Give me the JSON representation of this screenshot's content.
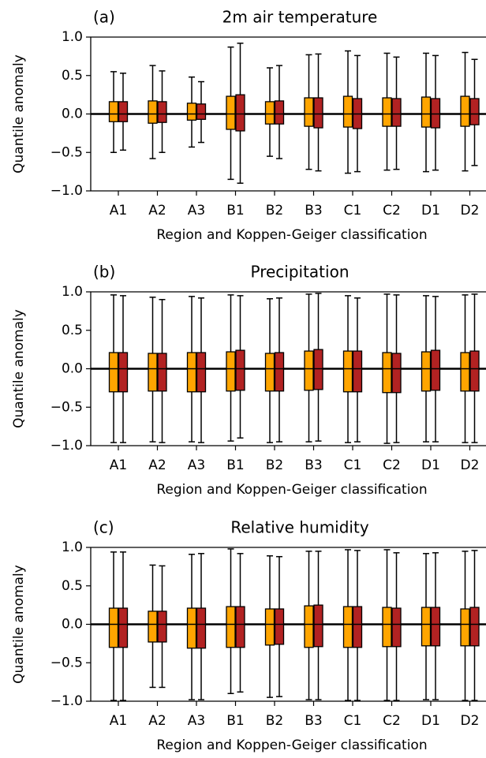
{
  "chart_data": [
    {
      "type": "box",
      "panel_label": "(a)",
      "title": "2m air temperature",
      "xlabel": "Region and Koppen-Geiger classification",
      "ylabel": "Quantile anomaly",
      "categories": [
        "A1",
        "A2",
        "A3",
        "B1",
        "B2",
        "B3",
        "C1",
        "C2",
        "D1",
        "D2"
      ],
      "series": [
        {
          "color": "#ffa500",
          "whislo": [
            -0.5,
            -0.58,
            -0.43,
            -0.85,
            -0.55,
            -0.72,
            -0.77,
            -0.73,
            -0.75,
            -0.74
          ],
          "q1": [
            -0.1,
            -0.12,
            -0.08,
            -0.2,
            -0.13,
            -0.16,
            -0.17,
            -0.16,
            -0.17,
            -0.16
          ],
          "med": [
            0,
            0,
            0,
            0,
            0,
            0,
            0,
            0,
            0,
            0
          ],
          "q3": [
            0.16,
            0.17,
            0.14,
            0.23,
            0.16,
            0.21,
            0.23,
            0.21,
            0.22,
            0.23
          ],
          "whishi": [
            0.55,
            0.63,
            0.48,
            0.87,
            0.6,
            0.77,
            0.82,
            0.79,
            0.79,
            0.8
          ]
        },
        {
          "color": "#b22222",
          "whislo": [
            -0.47,
            -0.5,
            -0.37,
            -0.9,
            -0.58,
            -0.74,
            -0.75,
            -0.72,
            -0.73,
            -0.67
          ],
          "q1": [
            -0.1,
            -0.11,
            -0.07,
            -0.22,
            -0.13,
            -0.18,
            -0.19,
            -0.16,
            -0.18,
            -0.14
          ],
          "med": [
            0,
            0,
            0,
            0,
            0,
            0,
            0,
            0,
            0,
            0
          ],
          "q3": [
            0.16,
            0.16,
            0.13,
            0.25,
            0.17,
            0.21,
            0.2,
            0.2,
            0.2,
            0.2
          ],
          "whishi": [
            0.53,
            0.56,
            0.42,
            0.92,
            0.63,
            0.78,
            0.76,
            0.74,
            0.76,
            0.71
          ]
        }
      ],
      "ylim": [
        -1,
        1
      ],
      "yticks": [
        {
          "value": -1,
          "label": "−1.0"
        },
        {
          "value": -0.5,
          "label": "−0.5"
        },
        {
          "value": 0,
          "label": "0.0"
        },
        {
          "value": 0.5,
          "label": "0.5"
        },
        {
          "value": 1,
          "label": "1.0"
        }
      ]
    },
    {
      "type": "box",
      "panel_label": "(b)",
      "title": "Precipitation",
      "xlabel": "Region and Koppen-Geiger classification",
      "ylabel": "Quantile anomaly",
      "categories": [
        "A1",
        "A2",
        "A3",
        "B1",
        "B2",
        "B3",
        "C1",
        "C2",
        "D1",
        "D2"
      ],
      "series": [
        {
          "color": "#ffa500",
          "whislo": [
            -0.96,
            -0.95,
            -0.95,
            -0.94,
            -0.96,
            -0.95,
            -0.96,
            -0.97,
            -0.95,
            -0.96
          ],
          "q1": [
            -0.3,
            -0.29,
            -0.3,
            -0.29,
            -0.29,
            -0.28,
            -0.3,
            -0.31,
            -0.29,
            -0.29
          ],
          "med": [
            0,
            0,
            0,
            0,
            0,
            0,
            0,
            0,
            0,
            0
          ],
          "q3": [
            0.21,
            0.2,
            0.21,
            0.22,
            0.2,
            0.23,
            0.23,
            0.21,
            0.22,
            0.21
          ],
          "whishi": [
            0.96,
            0.93,
            0.94,
            0.96,
            0.91,
            0.97,
            0.95,
            0.97,
            0.95,
            0.96
          ]
        },
        {
          "color": "#b22222",
          "whislo": [
            -0.96,
            -0.96,
            -0.96,
            -0.9,
            -0.95,
            -0.94,
            -0.95,
            -0.96,
            -0.95,
            -0.96
          ],
          "q1": [
            -0.3,
            -0.29,
            -0.3,
            -0.28,
            -0.29,
            -0.27,
            -0.3,
            -0.31,
            -0.28,
            -0.29
          ],
          "med": [
            0,
            0,
            0,
            0,
            0,
            0,
            0,
            0,
            0,
            0
          ],
          "q3": [
            0.21,
            0.2,
            0.21,
            0.24,
            0.21,
            0.25,
            0.23,
            0.2,
            0.24,
            0.23
          ],
          "whishi": [
            0.95,
            0.9,
            0.92,
            0.95,
            0.92,
            0.98,
            0.92,
            0.96,
            0.94,
            0.97
          ]
        }
      ],
      "ylim": [
        -1,
        1
      ],
      "yticks": [
        {
          "value": -1,
          "label": "−1.0"
        },
        {
          "value": -0.5,
          "label": "−0.5"
        },
        {
          "value": 0,
          "label": "0.0"
        },
        {
          "value": 0.5,
          "label": "0.5"
        },
        {
          "value": 1,
          "label": "1.0"
        }
      ]
    },
    {
      "type": "box",
      "panel_label": "(c)",
      "title": "Relative humidity",
      "xlabel": "Region and Koppen-Geiger classification",
      "ylabel": "Quantile anomaly",
      "categories": [
        "A1",
        "A2",
        "A3",
        "B1",
        "B2",
        "B3",
        "C1",
        "C2",
        "D1",
        "D2"
      ],
      "series": [
        {
          "color": "#ffa500",
          "whislo": [
            -0.99,
            -0.82,
            -0.98,
            -0.9,
            -0.95,
            -0.98,
            -0.99,
            -0.99,
            -0.98,
            -0.99
          ],
          "q1": [
            -0.3,
            -0.23,
            -0.31,
            -0.3,
            -0.27,
            -0.3,
            -0.3,
            -0.29,
            -0.28,
            -0.28
          ],
          "med": [
            0,
            0,
            0,
            0,
            0,
            0,
            0,
            0,
            0,
            0
          ],
          "q3": [
            0.21,
            0.17,
            0.21,
            0.23,
            0.2,
            0.24,
            0.23,
            0.22,
            0.22,
            0.2
          ],
          "whishi": [
            0.94,
            0.77,
            0.91,
            0.98,
            0.89,
            0.95,
            0.97,
            0.97,
            0.92,
            0.95
          ]
        },
        {
          "color": "#b22222",
          "whislo": [
            -0.99,
            -0.82,
            -0.98,
            -0.88,
            -0.94,
            -0.98,
            -0.99,
            -0.99,
            -0.98,
            -0.99
          ],
          "q1": [
            -0.3,
            -0.23,
            -0.31,
            -0.3,
            -0.26,
            -0.29,
            -0.3,
            -0.29,
            -0.28,
            -0.28
          ],
          "med": [
            0,
            0,
            0,
            0,
            0,
            0,
            0,
            0,
            0,
            0
          ],
          "q3": [
            0.21,
            0.17,
            0.21,
            0.23,
            0.2,
            0.25,
            0.23,
            0.21,
            0.22,
            0.22
          ],
          "whishi": [
            0.94,
            0.76,
            0.92,
            0.92,
            0.88,
            0.95,
            0.96,
            0.93,
            0.93,
            0.96
          ]
        }
      ],
      "ylim": [
        -1,
        1
      ],
      "yticks": [
        {
          "value": -1,
          "label": "−1.0"
        },
        {
          "value": -0.5,
          "label": "−0.5"
        },
        {
          "value": 0,
          "label": "0.0"
        },
        {
          "value": 0.5,
          "label": "0.5"
        },
        {
          "value": 1,
          "label": "1.0"
        }
      ]
    }
  ]
}
